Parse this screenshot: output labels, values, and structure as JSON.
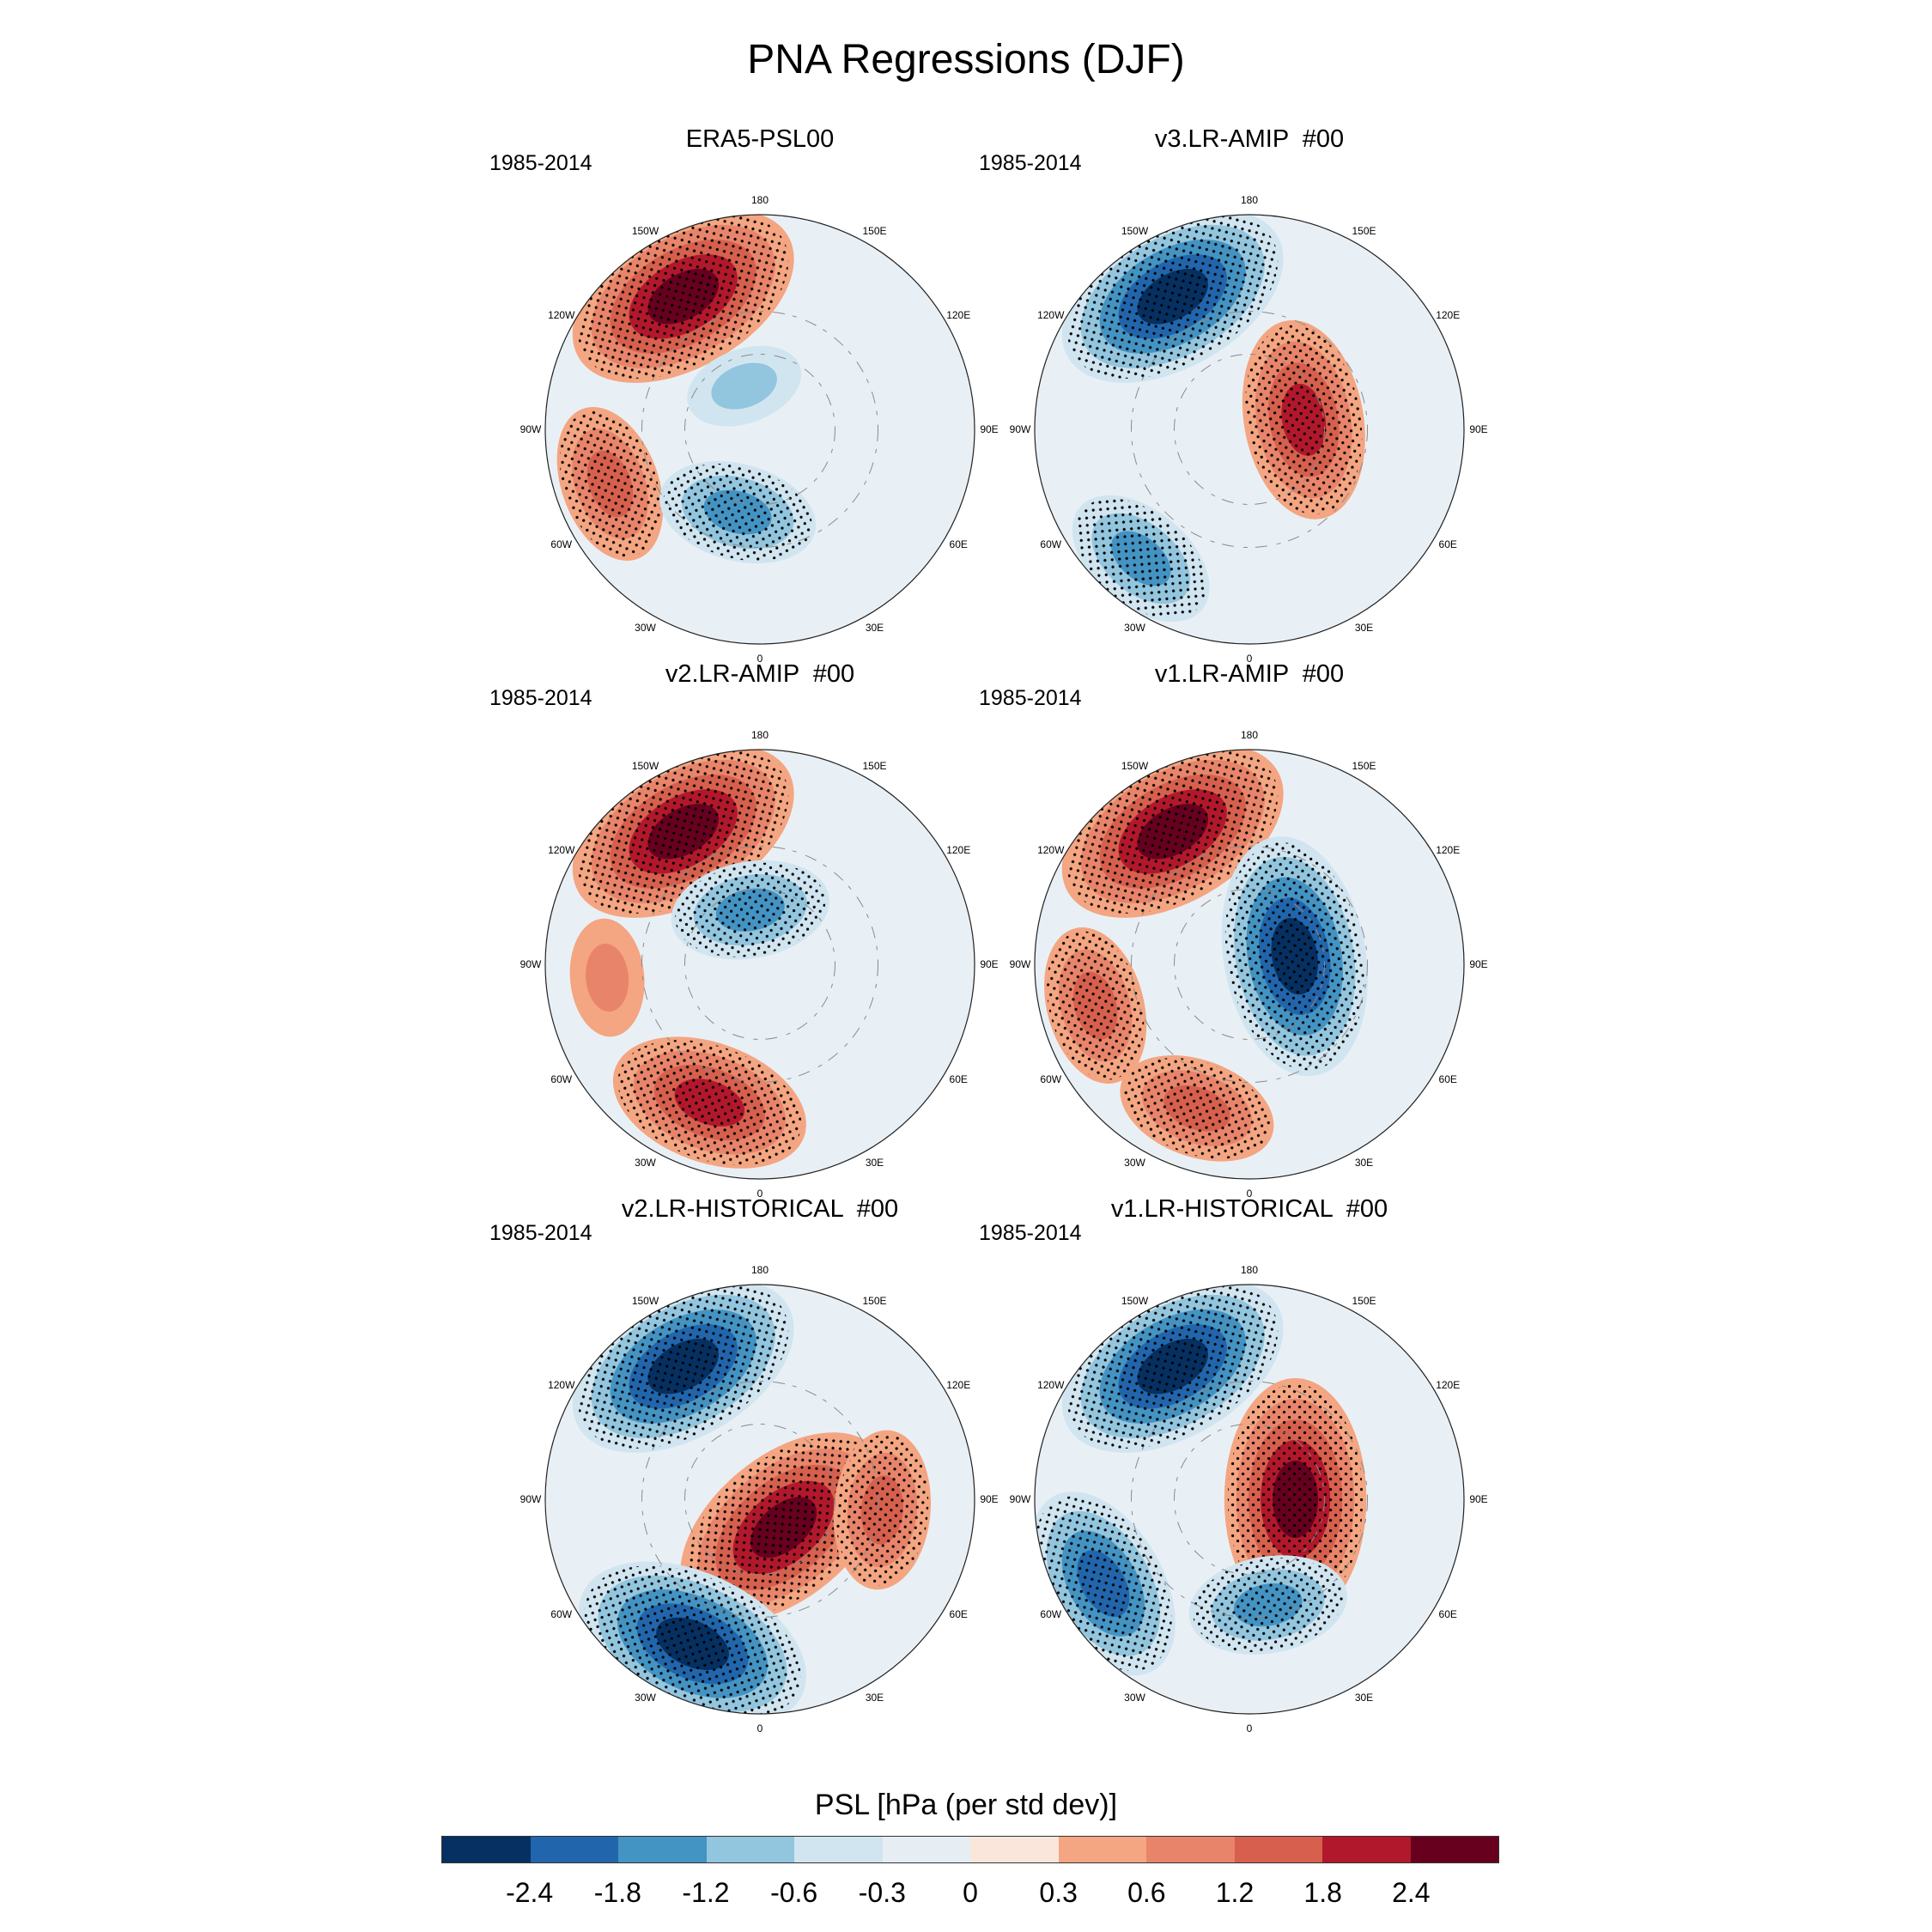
{
  "figure": {
    "title": "PNA Regressions (DJF)"
  },
  "lon_labels": [
    "180",
    "150E",
    "120E",
    "90E",
    "60E",
    "30E",
    "0",
    "30W",
    "60W",
    "90W",
    "120W",
    "150W"
  ],
  "panels": [
    {
      "title": "ERA5-PSL00",
      "period": "1985-2014",
      "features": [
        {
          "kind": "high",
          "lon": -150,
          "lat": 40,
          "value": 2.4
        },
        {
          "kind": "high",
          "lon": -70,
          "lat": 38,
          "value": 1.2
        },
        {
          "kind": "low",
          "lon": -15,
          "lat": 62,
          "value": -1.2
        },
        {
          "kind": "low",
          "lon": -160,
          "lat": 75,
          "value": -0.6
        }
      ]
    },
    {
      "title": "v3.LR-AMIP  #00",
      "period": "1985-2014",
      "features": [
        {
          "kind": "low",
          "lon": -150,
          "lat": 40,
          "value": -2.4
        },
        {
          "kind": "low",
          "lon": -40,
          "lat": 35,
          "value": -1.2
        },
        {
          "kind": "high",
          "lon": 100,
          "lat": 72,
          "value": 1.8
        }
      ]
    },
    {
      "title": "v2.LR-AMIP  #00",
      "period": "1985-2014",
      "features": [
        {
          "kind": "high",
          "lon": -150,
          "lat": 40,
          "value": 2.4
        },
        {
          "kind": "high",
          "lon": -20,
          "lat": 42,
          "value": 1.8
        },
        {
          "kind": "low",
          "lon": -170,
          "lat": 72,
          "value": -1.2
        },
        {
          "kind": "high",
          "lon": -85,
          "lat": 40,
          "value": 0.6
        }
      ]
    },
    {
      "title": "v1.LR-AMIP  #00",
      "period": "1985-2014",
      "features": [
        {
          "kind": "high",
          "lon": -150,
          "lat": 40,
          "value": 2.4
        },
        {
          "kind": "low",
          "lon": 100,
          "lat": 75,
          "value": -2.4
        },
        {
          "kind": "high",
          "lon": -20,
          "lat": 40,
          "value": 1.2
        },
        {
          "kind": "high",
          "lon": -75,
          "lat": 38,
          "value": 1.2
        }
      ]
    },
    {
      "title": "v2.LR-HISTORICAL  #00",
      "period": "1985-2014",
      "features": [
        {
          "kind": "low",
          "lon": -150,
          "lat": 40,
          "value": -2.4
        },
        {
          "kind": "high",
          "lon": 40,
          "lat": 78,
          "value": 2.4
        },
        {
          "kind": "low",
          "lon": -25,
          "lat": 38,
          "value": -2.4
        },
        {
          "kind": "high",
          "lon": 85,
          "lat": 50,
          "value": 1.2
        }
      ]
    },
    {
      "title": "v1.LR-HISTORICAL  #00",
      "period": "1985-2014",
      "features": [
        {
          "kind": "low",
          "lon": -150,
          "lat": 40,
          "value": -2.4
        },
        {
          "kind": "high",
          "lon": 90,
          "lat": 75,
          "value": 2.4
        },
        {
          "kind": "low",
          "lon": -60,
          "lat": 35,
          "value": -1.8
        },
        {
          "kind": "low",
          "lon": 10,
          "lat": 55,
          "value": -1.2
        }
      ]
    }
  ],
  "colorbar": {
    "title": "PSL [hPa (per std dev)]",
    "tick_labels": [
      "-2.4",
      "-1.8",
      "-1.2",
      "-0.6",
      "-0.3",
      "0",
      "0.3",
      "0.6",
      "1.2",
      "1.8",
      "2.4"
    ],
    "colors": [
      "#053061",
      "#2166ac",
      "#4393c3",
      "#92c5de",
      "#d1e5f0",
      "#e6eef4",
      "#fbe6dc",
      "#f4a582",
      "#e8846a",
      "#d6604d",
      "#b2182b",
      "#67001f"
    ]
  }
}
